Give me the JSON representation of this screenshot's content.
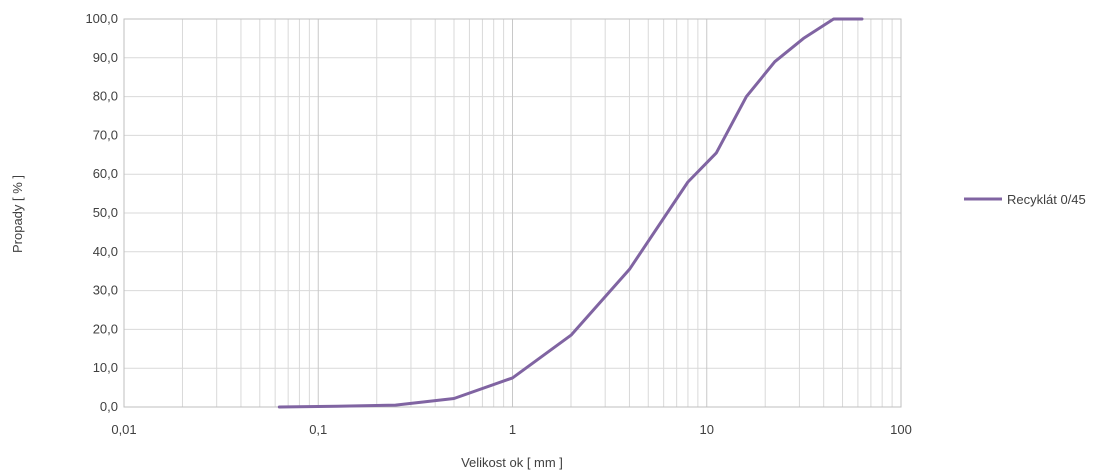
{
  "chart_data": {
    "type": "line",
    "title": "",
    "xlabel": "Velikost ok [ mm ]",
    "ylabel": "Propady [ % ]",
    "x_scale": "log",
    "xlim": [
      0.01,
      100
    ],
    "ylim": [
      0,
      100
    ],
    "grid": true,
    "legend_position": "right",
    "x_tick_values": [
      0.01,
      0.1,
      1,
      10,
      100
    ],
    "x_tick_labels": [
      "0,01",
      "0,1",
      "1",
      "10",
      "100"
    ],
    "y_tick_values": [
      0,
      10,
      20,
      30,
      40,
      50,
      60,
      70,
      80,
      90,
      100
    ],
    "y_tick_labels": [
      "0,0",
      "10,0",
      "20,0",
      "30,0",
      "40,0",
      "50,0",
      "60,0",
      "70,0",
      "80,0",
      "90,0",
      "100,0"
    ],
    "series": [
      {
        "name": "Recyklát 0/45",
        "color": "#8064a2",
        "x": [
          0.063,
          0.125,
          0.25,
          0.5,
          1,
          2,
          4,
          8,
          11.2,
          16,
          22.4,
          31.5,
          45,
          63
        ],
        "y": [
          0,
          0.2,
          0.5,
          2.2,
          7.5,
          18.5,
          35.5,
          58,
          65.5,
          80,
          89,
          95,
          100,
          100
        ]
      }
    ]
  }
}
